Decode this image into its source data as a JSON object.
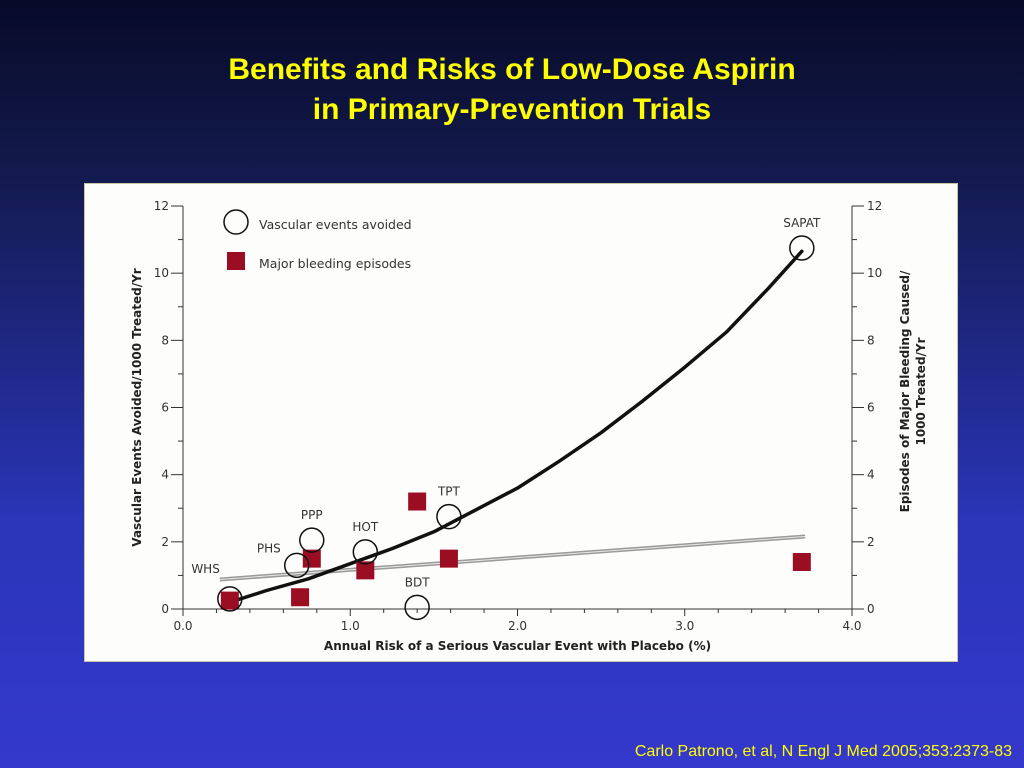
{
  "slide": {
    "title_line1": "Benefits and Risks of Low-Dose Aspirin",
    "title_line2": "in Primary-Prevention Trials",
    "citation": "Carlo Patrono, et al, N Engl J Med 2005;353:2373-83"
  },
  "colors": {
    "title": "#ffff00",
    "bleeding_marker": "#9b0d22",
    "vascular_curve": "#111111",
    "bleeding_line": "#9a9a9a"
  },
  "chart_data": {
    "type": "scatter",
    "xlabel": "Annual Risk of a Serious Vascular Event with Placebo (%)",
    "ylabel": "Vascular Events Avoided/1000 Treated/Yr",
    "y2label_line1": "Episodes of Major Bleeding Caused/",
    "y2label_line2": "1000 Treated/Yr",
    "xlim": [
      0.0,
      4.0
    ],
    "ylim": [
      0,
      12
    ],
    "y2lim": [
      0,
      12
    ],
    "x_ticks": [
      "0.0",
      "1.0",
      "2.0",
      "3.0",
      "4.0"
    ],
    "y_ticks": [
      "0",
      "2",
      "4",
      "6",
      "8",
      "10",
      "12"
    ],
    "legend": {
      "placement": "top-left",
      "vascular": "Vascular events avoided",
      "bleeding": "Major bleeding episodes"
    },
    "series": [
      {
        "name": "Vascular events avoided",
        "marker": "open-circle",
        "points": [
          {
            "label": "WHS",
            "x": 0.28,
            "y": 0.3
          },
          {
            "label": "PHS",
            "x": 0.68,
            "y": 1.3
          },
          {
            "label": "PPP",
            "x": 0.77,
            "y": 2.05
          },
          {
            "label": "HOT",
            "x": 1.09,
            "y": 1.7
          },
          {
            "label": "BDT",
            "x": 1.4,
            "y": 0.05
          },
          {
            "label": "TPT",
            "x": 1.59,
            "y": 2.75
          },
          {
            "label": "SAPAT",
            "x": 3.7,
            "y": 10.75
          }
        ]
      },
      {
        "name": "Major bleeding episodes",
        "marker": "filled-square",
        "points": [
          {
            "x": 0.28,
            "y": 0.25
          },
          {
            "x": 0.7,
            "y": 0.35
          },
          {
            "x": 0.77,
            "y": 1.5
          },
          {
            "x": 1.09,
            "y": 1.15
          },
          {
            "x": 1.4,
            "y": 3.2
          },
          {
            "x": 1.59,
            "y": 1.5
          },
          {
            "x": 3.7,
            "y": 1.4
          }
        ]
      }
    ],
    "fit_lines": [
      {
        "name": "Vascular events avoided",
        "points": [
          [
            0.28,
            0.2
          ],
          [
            0.5,
            0.55
          ],
          [
            0.75,
            0.9
          ],
          [
            1.0,
            1.35
          ],
          [
            1.25,
            1.8
          ],
          [
            1.5,
            2.3
          ],
          [
            1.75,
            2.95
          ],
          [
            2.0,
            3.6
          ],
          [
            2.25,
            4.4
          ],
          [
            2.5,
            5.25
          ],
          [
            2.75,
            6.2
          ],
          [
            3.0,
            7.2
          ],
          [
            3.25,
            8.25
          ],
          [
            3.5,
            9.55
          ],
          [
            3.7,
            10.65
          ]
        ]
      },
      {
        "name": "Major bleeding episodes",
        "points": [
          [
            0.22,
            0.88
          ],
          [
            3.72,
            2.16
          ]
        ]
      }
    ]
  }
}
